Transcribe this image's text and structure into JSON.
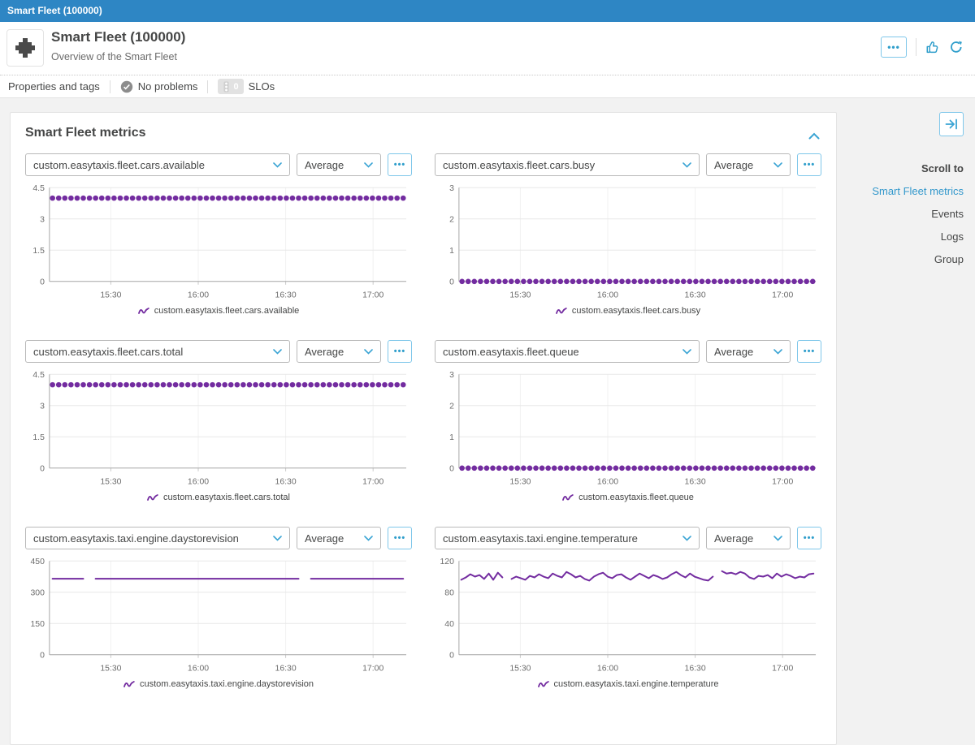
{
  "topbar": {
    "title": "Smart Fleet (100000)"
  },
  "header": {
    "title": "Smart Fleet (100000)",
    "subtitle": "Overview of the Smart Fleet"
  },
  "icons": {
    "ellipsis": "•••"
  },
  "tabbar": {
    "properties": "Properties and tags",
    "no_problems": "No problems",
    "slo_count": "0",
    "slos": "SLOs"
  },
  "card": {
    "title": "Smart Fleet metrics"
  },
  "sidebar": {
    "scroll_to": "Scroll to",
    "links": [
      {
        "label": "Smart Fleet metrics",
        "active": true
      },
      {
        "label": "Events",
        "active": false
      },
      {
        "label": "Logs",
        "active": false
      },
      {
        "label": "Group",
        "active": false
      }
    ]
  },
  "chart_data": [
    {
      "type": "scatter",
      "metric": "custom.easytaxis.fleet.cars.available",
      "aggregation": "Average",
      "legend": "custom.easytaxis.fleet.cars.available",
      "color": "#732ca0",
      "ylim": [
        0,
        4.5
      ],
      "y_ticks": [
        0,
        1.5,
        3,
        4.5
      ],
      "x_ticks": [
        "15:30",
        "16:00",
        "16:30",
        "17:00"
      ],
      "x_tick_pos": [
        0.172,
        0.417,
        0.662,
        0.907
      ],
      "values": [
        4,
        4,
        4,
        4,
        4,
        4,
        4,
        4,
        4,
        4,
        4,
        4,
        4,
        4,
        4,
        4,
        4,
        4,
        4,
        4,
        4,
        4,
        4,
        4,
        4,
        4,
        4,
        4,
        4,
        4,
        4,
        4,
        4,
        4,
        4,
        4,
        4,
        4,
        4,
        4,
        4,
        4,
        4,
        4,
        4,
        4,
        4,
        4,
        4,
        4,
        4,
        4,
        4,
        4,
        4,
        4,
        4,
        4
      ]
    },
    {
      "type": "scatter",
      "metric": "custom.easytaxis.fleet.cars.busy",
      "aggregation": "Average",
      "legend": "custom.easytaxis.fleet.cars.busy",
      "color": "#732ca0",
      "ylim": [
        0,
        3
      ],
      "y_ticks": [
        0,
        1,
        2,
        3
      ],
      "x_ticks": [
        "15:30",
        "16:00",
        "16:30",
        "17:00"
      ],
      "x_tick_pos": [
        0.172,
        0.417,
        0.662,
        0.907
      ],
      "values": [
        0,
        0,
        0,
        0,
        0,
        0,
        0,
        0,
        0,
        0,
        0,
        0,
        0,
        0,
        0,
        0,
        0,
        0,
        0,
        0,
        0,
        0,
        0,
        0,
        0,
        0,
        0,
        0,
        0,
        0,
        0,
        0,
        0,
        0,
        0,
        0,
        0,
        0,
        0,
        0,
        0,
        0,
        0,
        0,
        0,
        0,
        0,
        0,
        0,
        0,
        0,
        0,
        0,
        0,
        0,
        0,
        0,
        0
      ]
    },
    {
      "type": "scatter",
      "metric": "custom.easytaxis.fleet.cars.total",
      "aggregation": "Average",
      "legend": "custom.easytaxis.fleet.cars.total",
      "color": "#732ca0",
      "ylim": [
        0,
        4.5
      ],
      "y_ticks": [
        0,
        1.5,
        3,
        4.5
      ],
      "x_ticks": [
        "15:30",
        "16:00",
        "16:30",
        "17:00"
      ],
      "x_tick_pos": [
        0.172,
        0.417,
        0.662,
        0.907
      ],
      "values": [
        4,
        4,
        4,
        4,
        4,
        4,
        4,
        4,
        4,
        4,
        4,
        4,
        4,
        4,
        4,
        4,
        4,
        4,
        4,
        4,
        4,
        4,
        4,
        4,
        4,
        4,
        4,
        4,
        4,
        4,
        4,
        4,
        4,
        4,
        4,
        4,
        4,
        4,
        4,
        4,
        4,
        4,
        4,
        4,
        4,
        4,
        4,
        4,
        4,
        4,
        4,
        4,
        4,
        4,
        4,
        4,
        4,
        4
      ]
    },
    {
      "type": "scatter",
      "metric": "custom.easytaxis.fleet.queue",
      "aggregation": "Average",
      "legend": "custom.easytaxis.fleet.queue",
      "color": "#732ca0",
      "ylim": [
        0,
        3
      ],
      "y_ticks": [
        0,
        1,
        2,
        3
      ],
      "x_ticks": [
        "15:30",
        "16:00",
        "16:30",
        "17:00"
      ],
      "x_tick_pos": [
        0.172,
        0.417,
        0.662,
        0.907
      ],
      "values": [
        0,
        0,
        0,
        0,
        0,
        0,
        0,
        0,
        0,
        0,
        0,
        0,
        0,
        0,
        0,
        0,
        0,
        0,
        0,
        0,
        0,
        0,
        0,
        0,
        0,
        0,
        0,
        0,
        0,
        0,
        0,
        0,
        0,
        0,
        0,
        0,
        0,
        0,
        0,
        0,
        0,
        0,
        0,
        0,
        0,
        0,
        0,
        0,
        0,
        0,
        0,
        0,
        0,
        0,
        0,
        0,
        0,
        0
      ]
    },
    {
      "type": "line",
      "metric": "custom.easytaxis.taxi.engine.daystorevision",
      "aggregation": "Average",
      "legend": "custom.easytaxis.taxi.engine.daystorevision",
      "color": "#732ca0",
      "ylim": [
        0,
        450
      ],
      "y_ticks": [
        0,
        150,
        300,
        450
      ],
      "x_ticks": [
        "15:30",
        "16:00",
        "16:30",
        "17:00"
      ],
      "x_tick_pos": [
        0.172,
        0.417,
        0.662,
        0.907
      ],
      "values": [
        365,
        365,
        365,
        365,
        365,
        365,
        null,
        365,
        365,
        365,
        365,
        365,
        365,
        365,
        365,
        365,
        365,
        365,
        365,
        365,
        365,
        365,
        365,
        365,
        365,
        365,
        365,
        365,
        365,
        365,
        365,
        365,
        365,
        365,
        365,
        365,
        365,
        365,
        365,
        365,
        365,
        null,
        365,
        365,
        365,
        365,
        365,
        365,
        365,
        365,
        365,
        365,
        365,
        365,
        365,
        365,
        365,
        365
      ]
    },
    {
      "type": "line",
      "metric": "custom.easytaxis.taxi.engine.temperature",
      "aggregation": "Average",
      "legend": "custom.easytaxis.taxi.engine.temperature",
      "color": "#732ca0",
      "ylim": [
        0,
        120
      ],
      "y_ticks": [
        0,
        40,
        80,
        120
      ],
      "x_ticks": [
        "15:30",
        "16:00",
        "16:30",
        "17:00"
      ],
      "x_tick_pos": [
        0.172,
        0.417,
        0.662,
        0.907
      ],
      "values": [
        96,
        99,
        103,
        100,
        102,
        97,
        104,
        96,
        105,
        99,
        null,
        97,
        100,
        98,
        96,
        101,
        99,
        103,
        100,
        98,
        104,
        101,
        99,
        106,
        103,
        99,
        101,
        97,
        95,
        100,
        103,
        105,
        100,
        98,
        102,
        103,
        99,
        96,
        100,
        104,
        101,
        98,
        102,
        100,
        97,
        99,
        103,
        106,
        102,
        99,
        104,
        100,
        98,
        96,
        95,
        100,
        null,
        107,
        104,
        105,
        103,
        106,
        104,
        99,
        97,
        101,
        100,
        102,
        98,
        104,
        100,
        103,
        101,
        98,
        100,
        99,
        103,
        104
      ]
    }
  ]
}
